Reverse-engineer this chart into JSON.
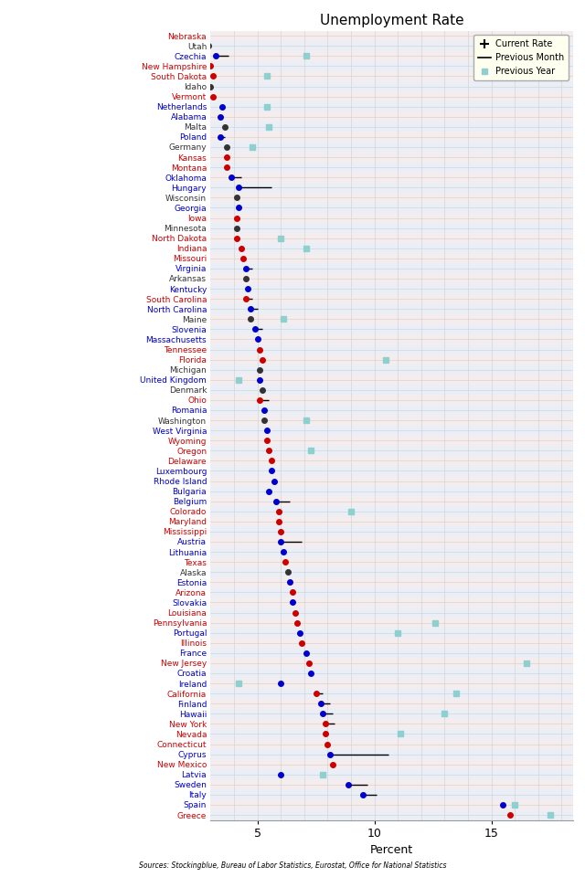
{
  "title": "Unemployment Rate",
  "xlabel": "Percent",
  "source_text": "Sources: Stockingblue, Bureau of Labor Statistics, Eurostat, Office for National Statistics",
  "xlim": [
    3.0,
    18.5
  ],
  "xticks": [
    5,
    10,
    15
  ],
  "legend_bg": "#fffff0",
  "row_colors": [
    "#f5eded",
    "#eaeff7"
  ],
  "grid_color": "#d4d4d4",
  "prev_year_color": "#8ecfcf",
  "entries": [
    {
      "label": "Nebraska",
      "color": "#cc0000",
      "current": 2.8,
      "prev_month": null,
      "prev_year": null
    },
    {
      "label": "Utah",
      "color": "#333333",
      "current": 2.9,
      "prev_month": null,
      "prev_year": null
    },
    {
      "label": "Czechia",
      "color": "#0000cc",
      "current": 3.2,
      "prev_month": 3.75,
      "prev_year": 7.1
    },
    {
      "label": "New Hampshire",
      "color": "#cc0000",
      "current": 3.0,
      "prev_month": null,
      "prev_year": null
    },
    {
      "label": "South Dakota",
      "color": "#cc0000",
      "current": 3.1,
      "prev_month": null,
      "prev_year": 5.4
    },
    {
      "label": "Idaho",
      "color": "#333333",
      "current": 3.0,
      "prev_month": null,
      "prev_year": null
    },
    {
      "label": "Vermont",
      "color": "#cc0000",
      "current": 3.1,
      "prev_month": null,
      "prev_year": null
    },
    {
      "label": "Netherlands",
      "color": "#0000cc",
      "current": 3.5,
      "prev_month": null,
      "prev_year": 5.4
    },
    {
      "label": "Alabama",
      "color": "#0000cc",
      "current": 3.4,
      "prev_month": null,
      "prev_year": null
    },
    {
      "label": "Malta",
      "color": "#333333",
      "current": 3.6,
      "prev_month": null,
      "prev_year": 5.5
    },
    {
      "label": "Poland",
      "color": "#0000cc",
      "current": 3.4,
      "prev_month": 3.6,
      "prev_year": null
    },
    {
      "label": "Germany",
      "color": "#333333",
      "current": 3.7,
      "prev_month": null,
      "prev_year": 4.8
    },
    {
      "label": "Kansas",
      "color": "#cc0000",
      "current": 3.7,
      "prev_month": null,
      "prev_year": null
    },
    {
      "label": "Montana",
      "color": "#cc0000",
      "current": 3.7,
      "prev_month": null,
      "prev_year": null
    },
    {
      "label": "Oklahoma",
      "color": "#0000cc",
      "current": 3.9,
      "prev_month": 4.3,
      "prev_year": null
    },
    {
      "label": "Hungary",
      "color": "#0000cc",
      "current": 4.2,
      "prev_month": 5.6,
      "prev_year": null
    },
    {
      "label": "Wisconsin",
      "color": "#333333",
      "current": 4.1,
      "prev_month": null,
      "prev_year": null
    },
    {
      "label": "Georgia",
      "color": "#0000cc",
      "current": 4.2,
      "prev_month": null,
      "prev_year": null
    },
    {
      "label": "Iowa",
      "color": "#cc0000",
      "current": 4.1,
      "prev_month": null,
      "prev_year": null
    },
    {
      "label": "Minnesota",
      "color": "#333333",
      "current": 4.1,
      "prev_month": null,
      "prev_year": null
    },
    {
      "label": "North Dakota",
      "color": "#cc0000",
      "current": 4.1,
      "prev_month": null,
      "prev_year": 6.0
    },
    {
      "label": "Indiana",
      "color": "#cc0000",
      "current": 4.3,
      "prev_month": null,
      "prev_year": 7.1
    },
    {
      "label": "Missouri",
      "color": "#cc0000",
      "current": 4.4,
      "prev_month": null,
      "prev_year": null
    },
    {
      "label": "Virginia",
      "color": "#0000cc",
      "current": 4.5,
      "prev_month": 4.8,
      "prev_year": null
    },
    {
      "label": "Arkansas",
      "color": "#333333",
      "current": 4.5,
      "prev_month": null,
      "prev_year": null
    },
    {
      "label": "Kentucky",
      "color": "#0000cc",
      "current": 4.6,
      "prev_month": null,
      "prev_year": null
    },
    {
      "label": "South Carolina",
      "color": "#cc0000",
      "current": 4.5,
      "prev_month": 4.8,
      "prev_year": null
    },
    {
      "label": "North Carolina",
      "color": "#0000cc",
      "current": 4.7,
      "prev_month": 5.0,
      "prev_year": null
    },
    {
      "label": "Maine",
      "color": "#333333",
      "current": 4.7,
      "prev_month": null,
      "prev_year": 6.1
    },
    {
      "label": "Slovenia",
      "color": "#0000cc",
      "current": 4.9,
      "prev_month": 5.2,
      "prev_year": null
    },
    {
      "label": "Massachusetts",
      "color": "#0000cc",
      "current": 5.0,
      "prev_month": null,
      "prev_year": null
    },
    {
      "label": "Tennessee",
      "color": "#cc0000",
      "current": 5.1,
      "prev_month": null,
      "prev_year": null
    },
    {
      "label": "Florida",
      "color": "#cc0000",
      "current": 5.2,
      "prev_month": null,
      "prev_year": 10.5
    },
    {
      "label": "Michigan",
      "color": "#333333",
      "current": 5.1,
      "prev_month": null,
      "prev_year": null
    },
    {
      "label": "United Kingdom",
      "color": "#0000cc",
      "current": 5.1,
      "prev_month": null,
      "prev_year": 4.2
    },
    {
      "label": "Denmark",
      "color": "#333333",
      "current": 5.2,
      "prev_month": null,
      "prev_year": null
    },
    {
      "label": "Ohio",
      "color": "#cc0000",
      "current": 5.1,
      "prev_month": 5.5,
      "prev_year": null
    },
    {
      "label": "Romania",
      "color": "#0000cc",
      "current": 5.3,
      "prev_month": null,
      "prev_year": null
    },
    {
      "label": "Washington",
      "color": "#333333",
      "current": 5.3,
      "prev_month": null,
      "prev_year": 7.1
    },
    {
      "label": "West Virginia",
      "color": "#0000cc",
      "current": 5.4,
      "prev_month": null,
      "prev_year": null
    },
    {
      "label": "Wyoming",
      "color": "#cc0000",
      "current": 5.4,
      "prev_month": null,
      "prev_year": null
    },
    {
      "label": "Oregon",
      "color": "#cc0000",
      "current": 5.5,
      "prev_month": null,
      "prev_year": 7.3
    },
    {
      "label": "Delaware",
      "color": "#cc0000",
      "current": 5.6,
      "prev_month": null,
      "prev_year": null
    },
    {
      "label": "Luxembourg",
      "color": "#0000cc",
      "current": 5.6,
      "prev_month": null,
      "prev_year": null
    },
    {
      "label": "Rhode Island",
      "color": "#0000cc",
      "current": 5.7,
      "prev_month": null,
      "prev_year": null
    },
    {
      "label": "Bulgaria",
      "color": "#0000cc",
      "current": 5.5,
      "prev_month": null,
      "prev_year": null
    },
    {
      "label": "Belgium",
      "color": "#0000cc",
      "current": 5.8,
      "prev_month": 6.4,
      "prev_year": null
    },
    {
      "label": "Colorado",
      "color": "#cc0000",
      "current": 5.9,
      "prev_month": null,
      "prev_year": 9.0
    },
    {
      "label": "Maryland",
      "color": "#cc0000",
      "current": 5.9,
      "prev_month": null,
      "prev_year": null
    },
    {
      "label": "Mississippi",
      "color": "#cc0000",
      "current": 6.0,
      "prev_month": null,
      "prev_year": null
    },
    {
      "label": "Austria",
      "color": "#0000cc",
      "current": 6.0,
      "prev_month": 6.9,
      "prev_year": null
    },
    {
      "label": "Lithuania",
      "color": "#0000cc",
      "current": 6.1,
      "prev_month": null,
      "prev_year": null
    },
    {
      "label": "Texas",
      "color": "#cc0000",
      "current": 6.2,
      "prev_month": null,
      "prev_year": null
    },
    {
      "label": "Alaska",
      "color": "#333333",
      "current": 6.3,
      "prev_month": null,
      "prev_year": null
    },
    {
      "label": "Estonia",
      "color": "#0000cc",
      "current": 6.4,
      "prev_month": null,
      "prev_year": null
    },
    {
      "label": "Arizona",
      "color": "#cc0000",
      "current": 6.5,
      "prev_month": null,
      "prev_year": null
    },
    {
      "label": "Slovakia",
      "color": "#0000cc",
      "current": 6.5,
      "prev_month": null,
      "prev_year": null
    },
    {
      "label": "Louisiana",
      "color": "#cc0000",
      "current": 6.6,
      "prev_month": null,
      "prev_year": null
    },
    {
      "label": "Pennsylvania",
      "color": "#cc0000",
      "current": 6.7,
      "prev_month": null,
      "prev_year": 12.6
    },
    {
      "label": "Portugal",
      "color": "#0000cc",
      "current": 6.8,
      "prev_month": null,
      "prev_year": 11.0
    },
    {
      "label": "Illinois",
      "color": "#cc0000",
      "current": 6.9,
      "prev_month": null,
      "prev_year": null
    },
    {
      "label": "France",
      "color": "#0000cc",
      "current": 7.1,
      "prev_month": null,
      "prev_year": null
    },
    {
      "label": "New Jersey",
      "color": "#cc0000",
      "current": 7.2,
      "prev_month": null,
      "prev_year": 16.5
    },
    {
      "label": "Croatia",
      "color": "#0000cc",
      "current": 7.3,
      "prev_month": null,
      "prev_year": null
    },
    {
      "label": "Ireland",
      "color": "#0000cc",
      "current": 6.0,
      "prev_month": null,
      "prev_year": 4.2
    },
    {
      "label": "California",
      "color": "#cc0000",
      "current": 7.5,
      "prev_month": 7.8,
      "prev_year": 13.5
    },
    {
      "label": "Finland",
      "color": "#0000cc",
      "current": 7.7,
      "prev_month": 8.1,
      "prev_year": null
    },
    {
      "label": "Hawaii",
      "color": "#0000cc",
      "current": 7.8,
      "prev_month": 8.2,
      "prev_year": 13.0
    },
    {
      "label": "New York",
      "color": "#cc0000",
      "current": 7.9,
      "prev_month": 8.3,
      "prev_year": null
    },
    {
      "label": "Nevada",
      "color": "#cc0000",
      "current": 7.9,
      "prev_month": null,
      "prev_year": 11.1
    },
    {
      "label": "Connecticut",
      "color": "#cc0000",
      "current": 8.0,
      "prev_month": null,
      "prev_year": null
    },
    {
      "label": "Cyprus",
      "color": "#0000cc",
      "current": 8.1,
      "prev_month": 10.6,
      "prev_year": null
    },
    {
      "label": "New Mexico",
      "color": "#cc0000",
      "current": 8.2,
      "prev_month": null,
      "prev_year": null
    },
    {
      "label": "Latvia",
      "color": "#0000cc",
      "current": 6.0,
      "prev_month": null,
      "prev_year": 7.8
    },
    {
      "label": "Sweden",
      "color": "#0000cc",
      "current": 8.9,
      "prev_month": 9.7,
      "prev_year": null
    },
    {
      "label": "Italy",
      "color": "#0000cc",
      "current": 9.5,
      "prev_month": 10.1,
      "prev_year": null
    },
    {
      "label": "Spain",
      "color": "#0000cc",
      "current": 15.5,
      "prev_month": null,
      "prev_year": 16.0
    },
    {
      "label": "Greece",
      "color": "#cc0000",
      "current": 15.8,
      "prev_month": null,
      "prev_year": 17.5
    }
  ]
}
